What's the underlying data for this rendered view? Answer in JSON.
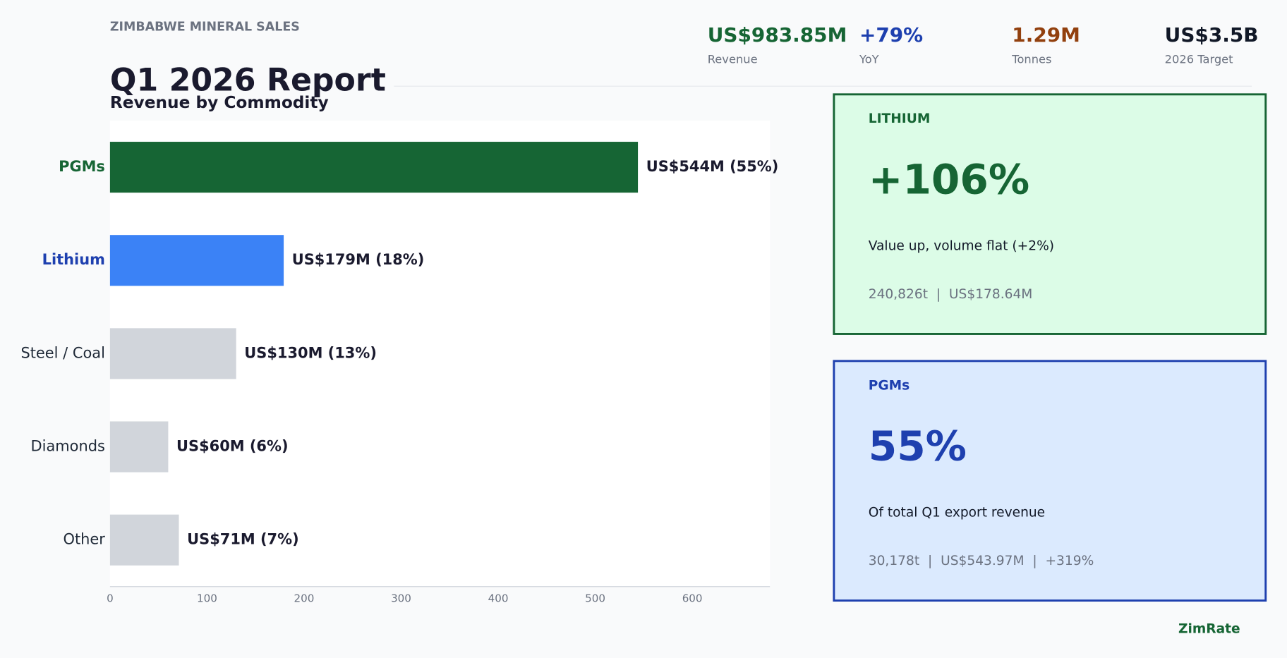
{
  "header": {
    "eyebrow": "ZIMBABWE MINERAL SALES",
    "title": "Q1 2026 Report",
    "kpis": [
      {
        "value": "US$983.85M",
        "label": "Revenue"
      },
      {
        "value": "+79%",
        "label": "YoY"
      },
      {
        "value": "1.29M",
        "label": "Tonnes"
      },
      {
        "value": "US$3.5B",
        "label": "2026 Target"
      }
    ]
  },
  "chart_data": {
    "type": "bar",
    "orientation": "horizontal",
    "title": "Revenue by Commodity",
    "categories": [
      "PGMs",
      "Lithium",
      "Steel / Coal",
      "Diamonds",
      "Other"
    ],
    "values": [
      544,
      179,
      130,
      60,
      71
    ],
    "value_labels": [
      "US$544M (55%)",
      "US$179M (18%)",
      "US$130M (13%)",
      "US$60M (6%)",
      "US$71M (7%)"
    ],
    "colors": [
      "#166534",
      "#3b82f6",
      "#d1d5db",
      "#d1d5db",
      "#d1d5db"
    ],
    "category_colors": [
      "#166534",
      "#1e40af",
      "#1f2937",
      "#1f2937",
      "#1f2937"
    ],
    "xlim": [
      0,
      680
    ],
    "xticks": [
      0,
      100,
      200,
      300,
      400,
      500,
      600
    ],
    "grid": false
  },
  "cards": [
    {
      "title": "LITHIUM",
      "big": "+106%",
      "description": "Value up, volume flat (+2%)",
      "detail": "240,826t  |  US$178.64M"
    },
    {
      "title": "PGMs",
      "big": "55%",
      "description": "Of total Q1 export revenue",
      "detail": "30,178t  |  US$543.97M  |  +319%"
    }
  ],
  "footer": {
    "brand": "ZimRate"
  }
}
